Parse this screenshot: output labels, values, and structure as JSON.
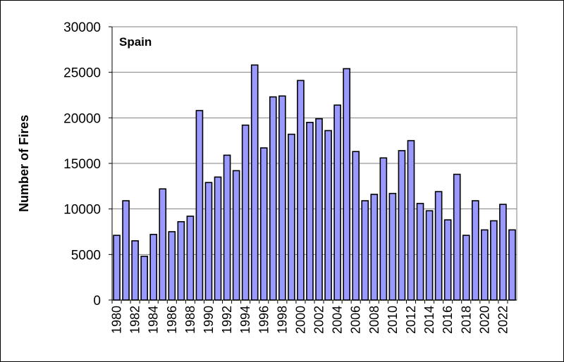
{
  "chart_data": {
    "type": "bar",
    "title": "Spain",
    "xlabel": "",
    "ylabel": "Number of Fires",
    "ylim": [
      0,
      30000
    ],
    "yticks": [
      0,
      5000,
      10000,
      15000,
      20000,
      25000,
      30000
    ],
    "grid": true,
    "bar_color": "#9999ff",
    "categories": [
      1980,
      1981,
      1982,
      1983,
      1984,
      1985,
      1986,
      1987,
      1988,
      1989,
      1990,
      1991,
      1992,
      1993,
      1994,
      1995,
      1996,
      1997,
      1998,
      1999,
      2000,
      2001,
      2002,
      2003,
      2004,
      2005,
      2006,
      2007,
      2008,
      2009,
      2010,
      2011,
      2012,
      2013,
      2014,
      2015,
      2016,
      2017,
      2018,
      2019,
      2020,
      2021,
      2022,
      2023
    ],
    "xtick_labels": [
      "1980",
      "1982",
      "1984",
      "1986",
      "1988",
      "1990",
      "1992",
      "1994",
      "1996",
      "1998",
      "2000",
      "2002",
      "2004",
      "2006",
      "2008",
      "2010",
      "2012",
      "2014",
      "2016",
      "2018",
      "2020",
      "2022"
    ],
    "values": [
      7100,
      10900,
      6500,
      4800,
      7200,
      12200,
      7500,
      8600,
      9200,
      20800,
      12900,
      13500,
      15900,
      14200,
      19200,
      25800,
      16700,
      22300,
      22400,
      18200,
      24100,
      19500,
      19900,
      18600,
      21400,
      25400,
      16300,
      10900,
      11600,
      15600,
      11700,
      16400,
      17500,
      10600,
      9800,
      11900,
      8800,
      13800,
      7100,
      10900,
      7700,
      8700,
      10500,
      7700
    ]
  }
}
